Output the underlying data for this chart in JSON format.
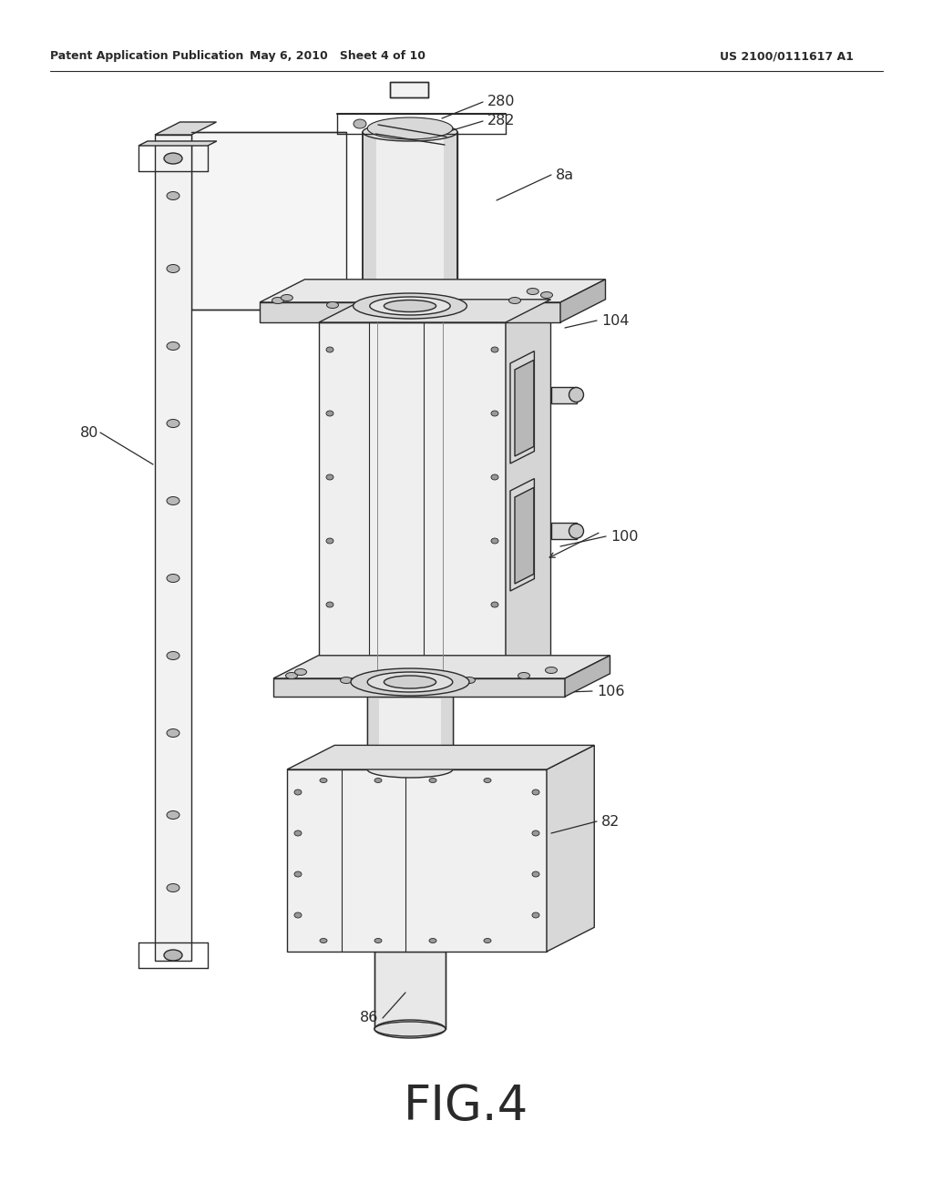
{
  "bg_color": "#ffffff",
  "line_color": "#2a2a2a",
  "line_width": 1.0,
  "header_left": "Patent Application Publication",
  "header_mid": "May 6, 2010   Sheet 4 of 10",
  "header_right": "US 2100/0111617 A1",
  "figure_label": "FIG.4",
  "gray_light": "#f2f2f2",
  "gray_mid": "#d8d8d8",
  "gray_dark": "#b8b8b8",
  "gray_darker": "#989898"
}
